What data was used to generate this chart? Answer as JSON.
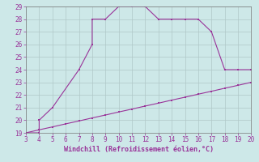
{
  "xlabel": "Windchill (Refroidissement éolien,°C)",
  "bg_color": "#cde8e8",
  "grid_color": "#b0c8c8",
  "line_color": "#993399",
  "upper_x": [
    3,
    4,
    4,
    5,
    7,
    8,
    8,
    9,
    10,
    11,
    12,
    13,
    14,
    15,
    16,
    17,
    18,
    19,
    20
  ],
  "upper_y": [
    19,
    19,
    20,
    21,
    24,
    26,
    28,
    28,
    29,
    29,
    29,
    28,
    28,
    28,
    28,
    27,
    24,
    24,
    24
  ],
  "lower_x": [
    3,
    4,
    5,
    6,
    7,
    8,
    9,
    10,
    11,
    12,
    13,
    14,
    15,
    16,
    17,
    18,
    19,
    20
  ],
  "lower_y": [
    19.0,
    19.24,
    19.47,
    19.71,
    19.94,
    20.18,
    20.41,
    20.65,
    20.88,
    21.12,
    21.35,
    21.59,
    21.82,
    22.06,
    22.29,
    22.53,
    22.76,
    23.0
  ],
  "xlim": [
    3,
    20
  ],
  "ylim": [
    19,
    29
  ],
  "xticks": [
    3,
    4,
    5,
    6,
    7,
    8,
    9,
    10,
    11,
    12,
    13,
    14,
    15,
    16,
    17,
    18,
    19,
    20
  ],
  "yticks": [
    19,
    20,
    21,
    22,
    23,
    24,
    25,
    26,
    27,
    28,
    29
  ],
  "marker_size": 2.0,
  "line_width": 0.8,
  "tick_fontsize": 5.5,
  "xlabel_fontsize": 6.0
}
